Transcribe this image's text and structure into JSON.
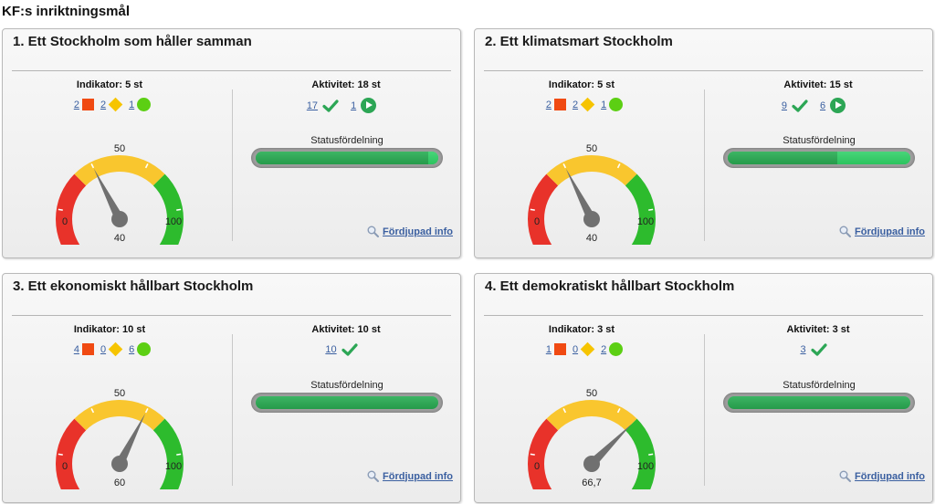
{
  "page": {
    "title": "KF:s inriktningsmål"
  },
  "labels": {
    "indicator_prefix": "Indikator: ",
    "activity_prefix": "Aktivitet: ",
    "unit": " st",
    "status_distribution": "Statusfördelning",
    "more_info": "Fördjupad info",
    "gauge_min": "0",
    "gauge_mid": "50",
    "gauge_max": "100"
  },
  "colors": {
    "red": "#e8322a",
    "yellow": "#f9c62e",
    "green": "#2dbb2d",
    "needle": "#707070",
    "link": "#3a5fa0"
  },
  "cards": [
    {
      "title": "1. Ett Stockholm som håller samman",
      "indicator_total": "5",
      "indicators": {
        "red": "2",
        "yellow": "2",
        "green": "1"
      },
      "activity_total": "18",
      "activities": [
        {
          "icon": "check-icon",
          "count": "17"
        },
        {
          "icon": "play-icon",
          "count": "1"
        }
      ],
      "gauge_value": 40,
      "gauge_label": "40",
      "status_split": {
        "done": 17,
        "ongoing": 1
      }
    },
    {
      "title": "2. Ett klimatsmart Stockholm",
      "indicator_total": "5",
      "indicators": {
        "red": "2",
        "yellow": "2",
        "green": "1"
      },
      "activity_total": "15",
      "activities": [
        {
          "icon": "check-icon",
          "count": "9"
        },
        {
          "icon": "play-icon",
          "count": "6"
        }
      ],
      "gauge_value": 40,
      "gauge_label": "40",
      "status_split": {
        "done": 9,
        "ongoing": 6
      }
    },
    {
      "title": "3. Ett ekonomiskt hållbart Stockholm",
      "indicator_total": "10",
      "indicators": {
        "red": "4",
        "yellow": "0",
        "green": "6"
      },
      "activity_total": "10",
      "activities": [
        {
          "icon": "check-icon",
          "count": "10"
        }
      ],
      "gauge_value": 60,
      "gauge_label": "60",
      "status_split": {
        "done": 10,
        "ongoing": 0
      }
    },
    {
      "title": "4. Ett demokratiskt hållbart Stockholm",
      "indicator_total": "3",
      "indicators": {
        "red": "1",
        "yellow": "0",
        "green": "2"
      },
      "activity_total": "3",
      "activities": [
        {
          "icon": "check-icon",
          "count": "3"
        }
      ],
      "gauge_value": 66.7,
      "gauge_label": "66,7",
      "status_split": {
        "done": 3,
        "ongoing": 0
      }
    }
  ]
}
